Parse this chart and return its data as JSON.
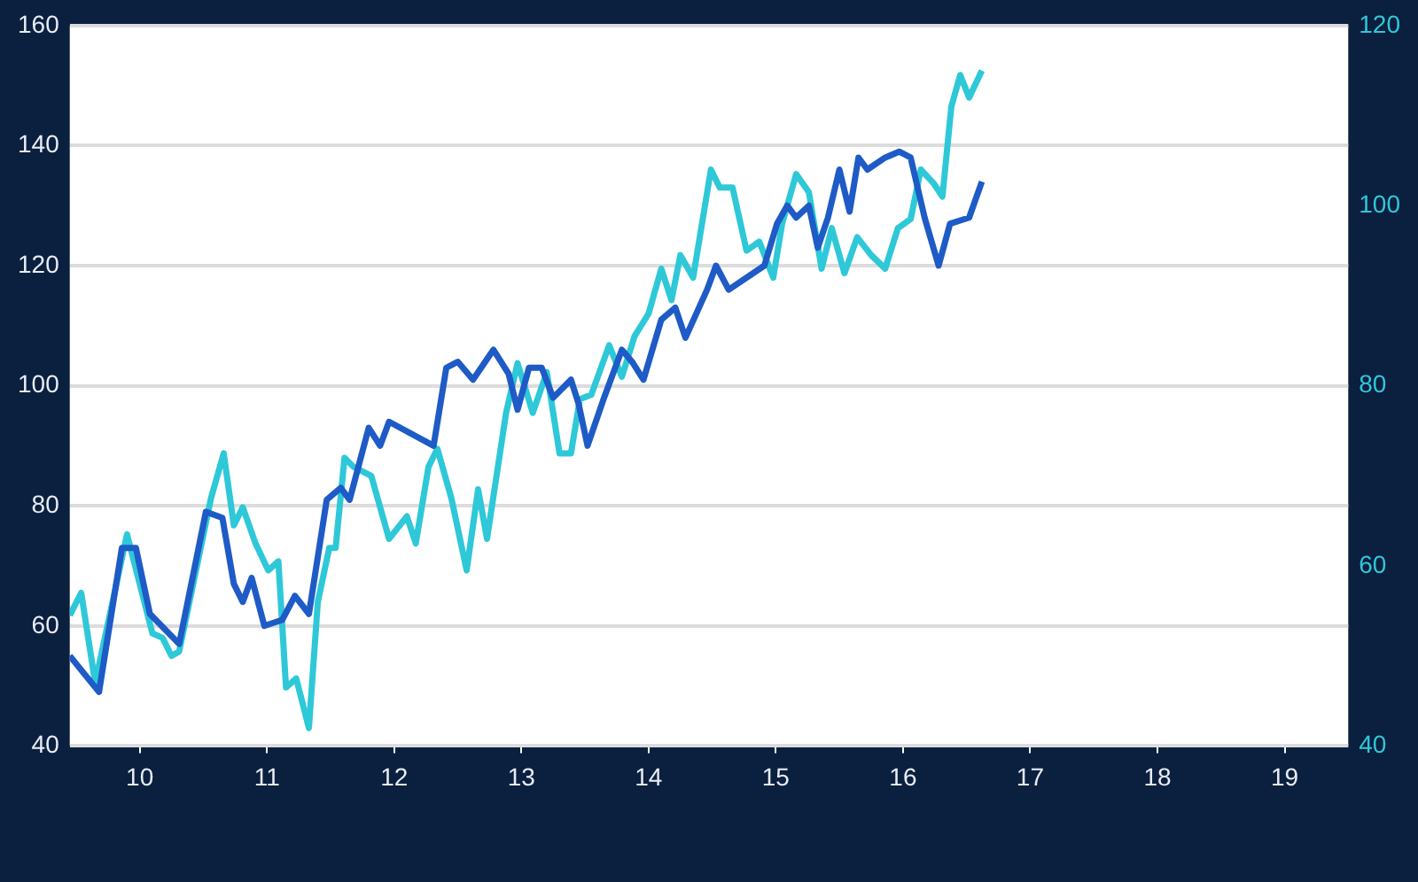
{
  "chart_data": {
    "type": "line",
    "xlim": [
      9.45,
      19.5
    ],
    "xticks": [
      {
        "value": 10,
        "label": "10"
      },
      {
        "value": 11,
        "label": "11"
      },
      {
        "value": 12,
        "label": "12"
      },
      {
        "value": 13,
        "label": "13"
      },
      {
        "value": 14,
        "label": "14"
      },
      {
        "value": 15,
        "label": "15"
      },
      {
        "value": 16,
        "label": "16"
      },
      {
        "value": 17,
        "label": "17"
      },
      {
        "value": 18,
        "label": "18"
      },
      {
        "value": 19,
        "label": "19"
      }
    ],
    "ylim": [
      40,
      160
    ],
    "yticks": [
      40,
      60,
      80,
      100,
      120,
      140,
      160
    ],
    "y2lim": [
      40,
      120
    ],
    "y2ticks": [
      40,
      60,
      80,
      100,
      120
    ],
    "grid": "y",
    "marker": "none",
    "line_style": "solid",
    "series": [
      {
        "color": "#1e5bc6",
        "x": [
          9.45,
          9.68,
          9.86,
          9.97,
          10.08,
          10.31,
          10.52,
          10.65,
          10.74,
          10.81,
          10.88,
          10.98,
          11.12,
          11.22,
          11.33,
          11.47,
          11.58,
          11.65,
          11.8,
          11.89,
          11.96,
          12.31,
          12.41,
          12.5,
          12.62,
          12.78,
          12.9,
          12.97,
          13.06,
          13.16,
          13.25,
          13.39,
          13.45,
          13.52,
          13.65,
          13.79,
          13.87,
          13.96,
          14.1,
          14.21,
          14.29,
          14.46,
          14.53,
          14.63,
          14.91,
          15.01,
          15.09,
          15.16,
          15.26,
          15.33,
          15.41,
          15.5,
          15.58,
          15.65,
          15.72,
          15.86,
          15.97,
          16.06,
          16.17,
          16.28,
          16.37,
          16.52,
          16.62
        ],
        "values": [
          55,
          49,
          73,
          73,
          62,
          57,
          79,
          78,
          67,
          64,
          68,
          60,
          61,
          65,
          62,
          81,
          83,
          81,
          93,
          90,
          94,
          90,
          103,
          104,
          101,
          106,
          102,
          96,
          103,
          103,
          98,
          101,
          97,
          90,
          98,
          106,
          104,
          101,
          111,
          113,
          108,
          116,
          120,
          116,
          120,
          127,
          130,
          128,
          130,
          123,
          128,
          136,
          129,
          138,
          136,
          138,
          139,
          138,
          128,
          120,
          127,
          128,
          134
        ]
      },
      {
        "color": "#2ec8d8",
        "axis": "y2",
        "x": [
          9.45,
          9.54,
          9.65,
          9.9,
          10,
          10.1,
          10.18,
          10.25,
          10.31,
          10.56,
          10.66,
          10.74,
          10.81,
          10.91,
          11.01,
          11.09,
          11.15,
          11.23,
          11.33,
          11.4,
          11.49,
          11.54,
          11.61,
          11.68,
          11.82,
          11.96,
          12.1,
          12.17,
          12.27,
          12.34,
          12.45,
          12.57,
          12.66,
          12.73,
          12.88,
          12.97,
          13.09,
          13.2,
          13.3,
          13.39,
          13.46,
          13.55,
          13.69,
          13.79,
          13.89,
          14,
          14.1,
          14.18,
          14.25,
          14.35,
          14.49,
          14.56,
          14.66,
          14.77,
          14.87,
          14.98,
          15.05,
          15.16,
          15.26,
          15.36,
          15.44,
          15.54,
          15.64,
          15.75,
          15.86,
          15.96,
          16.06,
          16.14,
          16.24,
          16.31,
          16.38,
          16.45,
          16.52,
          16.62
        ],
        "values": [
          54.5,
          57,
          47,
          63.5,
          58,
          52.5,
          52,
          50,
          50.5,
          67.5,
          72.5,
          64.5,
          66.5,
          62.5,
          59.5,
          60.5,
          46.5,
          47.5,
          42,
          56,
          62,
          62,
          72,
          71,
          70,
          63,
          65.5,
          62.5,
          71,
          73,
          67.5,
          59.5,
          68.5,
          63,
          77,
          82.5,
          77,
          81.5,
          72.5,
          72.5,
          78.5,
          79,
          84.5,
          81,
          85.5,
          88,
          93,
          89.5,
          94.5,
          92,
          104,
          102,
          102,
          95,
          96,
          92,
          98,
          103.5,
          101.5,
          93,
          97.5,
          92.5,
          96.5,
          94.5,
          93,
          97.5,
          98.5,
          104,
          102.5,
          101,
          111,
          114.5,
          112,
          115
        ]
      }
    ]
  }
}
